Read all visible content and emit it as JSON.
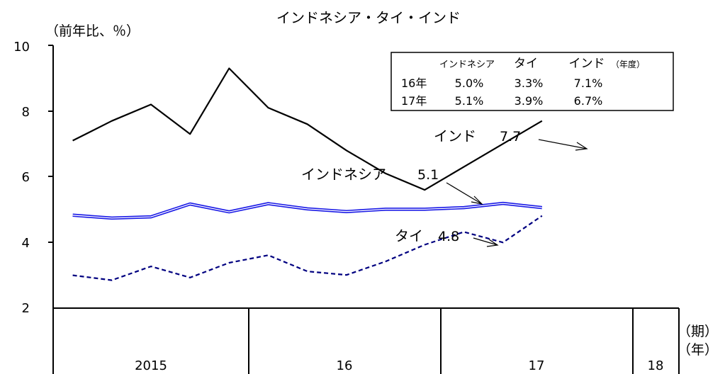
{
  "chart_data": {
    "type": "line",
    "title": "インドネシア・タイ・インド",
    "ylabel": "（前年比、％）",
    "x_unit_period": "（期）",
    "x_unit_year": "（年）",
    "ylim": [
      2,
      10
    ],
    "y_ticks": [
      "10",
      "8",
      "6",
      "4",
      "2"
    ],
    "x_periods": 16,
    "year_groups": [
      {
        "label": "2015",
        "start": 0,
        "end": 4
      },
      {
        "label": "16",
        "start": 4,
        "end": 8
      },
      {
        "label": "17",
        "start": 8,
        "end": 12
      },
      {
        "label": "18",
        "start": 12,
        "end": 13
      }
    ],
    "series": [
      {
        "name": "インド",
        "color": "#000000",
        "style": "solid",
        "values": [
          7.1,
          7.7,
          8.2,
          7.3,
          9.3,
          8.1,
          7.6,
          6.8,
          6.1,
          5.6,
          6.3,
          7.0,
          7.7
        ]
      },
      {
        "name": "インドネシア",
        "color": "#1a1ae6",
        "style": "double",
        "values": [
          4.83,
          4.74,
          4.78,
          5.17,
          4.93,
          5.18,
          5.02,
          4.94,
          5.01,
          5.01,
          5.06,
          5.19,
          5.06
        ]
      },
      {
        "name": "タイ",
        "color": "#000080",
        "style": "dashed",
        "values": [
          3.0,
          2.85,
          3.27,
          2.93,
          3.38,
          3.61,
          3.12,
          3.01,
          3.42,
          3.93,
          4.32,
          4.0,
          4.81
        ]
      }
    ],
    "annotations": [
      {
        "label": "インド",
        "value": "7.7"
      },
      {
        "label": "インドネシア",
        "value": "5.1"
      },
      {
        "label": "タイ",
        "value": "4.8"
      }
    ],
    "table": {
      "headers": [
        "インドネシア",
        "タイ",
        "インド"
      ],
      "unit": "（年度）",
      "rows": [
        {
          "label": "16年",
          "cells": [
            "5.0%",
            "3.3%",
            "7.1%"
          ]
        },
        {
          "label": "17年",
          "cells": [
            "5.1%",
            "3.9%",
            "6.7%"
          ]
        }
      ]
    }
  }
}
